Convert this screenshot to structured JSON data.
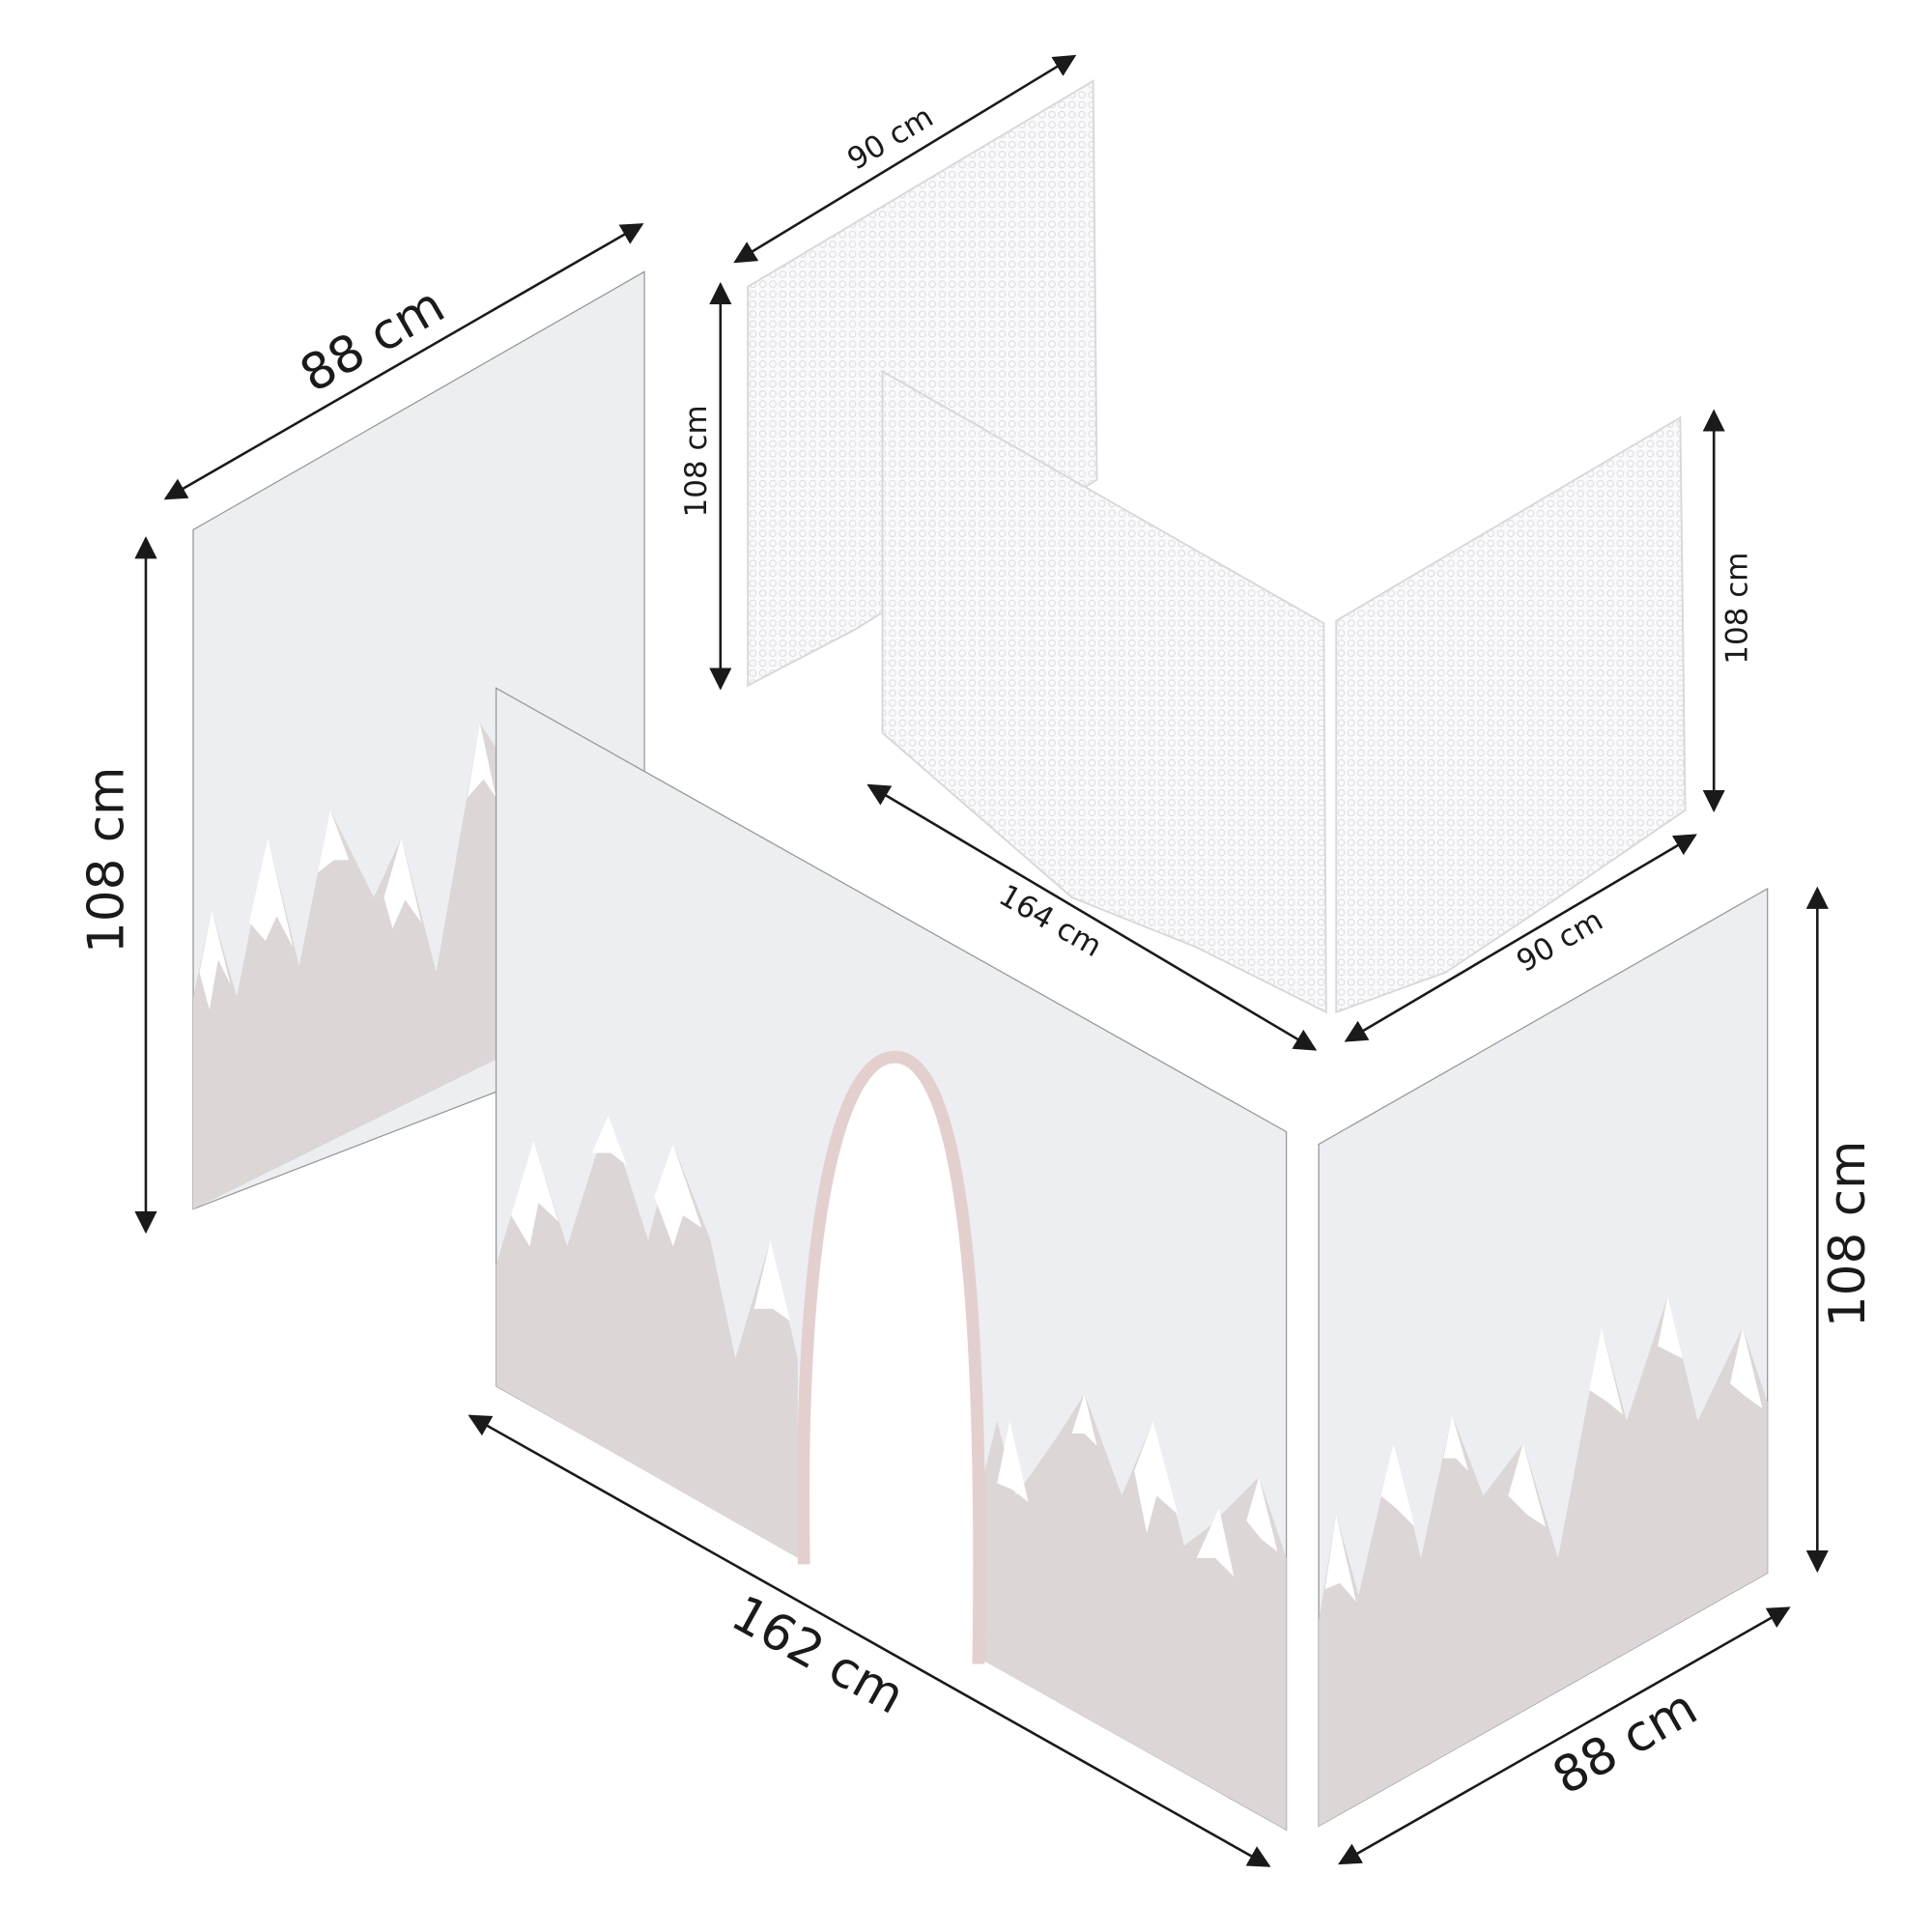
{
  "left_panel": {
    "width": "88 cm",
    "height": "108 cm"
  },
  "front_panel": {
    "width": "162 cm"
  },
  "right_panel": {
    "width": "88 cm",
    "height": "108 cm"
  },
  "net_back": {
    "width": "90 cm",
    "height": "108 cm"
  },
  "net_middle": {
    "width": "164 cm"
  },
  "net_right": {
    "width": "90 cm",
    "height": "108 cm"
  }
}
